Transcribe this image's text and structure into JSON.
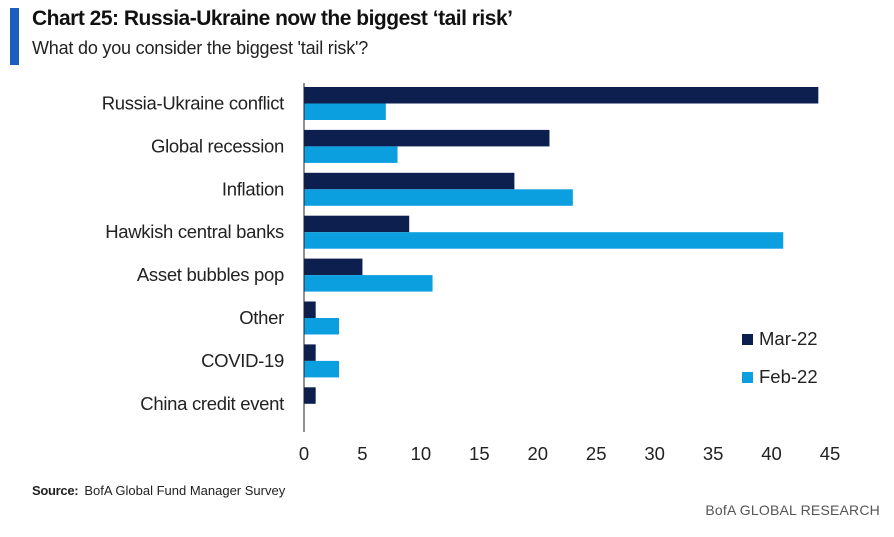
{
  "header": {
    "title": "Chart 25: Russia-Ukraine now the biggest ‘tail risk’",
    "subtitle": "What do you consider the biggest 'tail risk'?"
  },
  "footer": {
    "source_label": "Source:",
    "source_text": "BofA Global Fund Manager Survey",
    "brand": "BofA GLOBAL RESEARCH"
  },
  "colors": {
    "accent": "#1b5fbf",
    "mar22": "#0c1f4f",
    "feb22": "#0c9fe0"
  },
  "chart_data": {
    "type": "bar",
    "orientation": "horizontal",
    "title": "Chart 25: Russia-Ukraine now the biggest ‘tail risk’",
    "subtitle": "What do you consider the biggest 'tail risk'?",
    "categories": [
      "Russia-Ukraine conflict",
      "Global recession",
      "Inflation",
      "Hawkish central banks",
      "Asset bubbles pop",
      "Other",
      "COVID-19",
      "China credit event"
    ],
    "series": [
      {
        "name": "Mar-22",
        "color": "#0c1f4f",
        "values": [
          44,
          21,
          18,
          9,
          5,
          1,
          1,
          1
        ]
      },
      {
        "name": "Feb-22",
        "color": "#0c9fe0",
        "values": [
          7,
          8,
          23,
          41,
          11,
          3,
          3,
          0
        ]
      }
    ],
    "xlim": [
      0,
      45
    ],
    "xticks": [
      "0",
      "5",
      "10",
      "15",
      "20",
      "25",
      "30",
      "35",
      "40",
      "45"
    ],
    "xlabel": "",
    "ylabel": "",
    "grid": false,
    "legend_position": "bottom-right"
  }
}
